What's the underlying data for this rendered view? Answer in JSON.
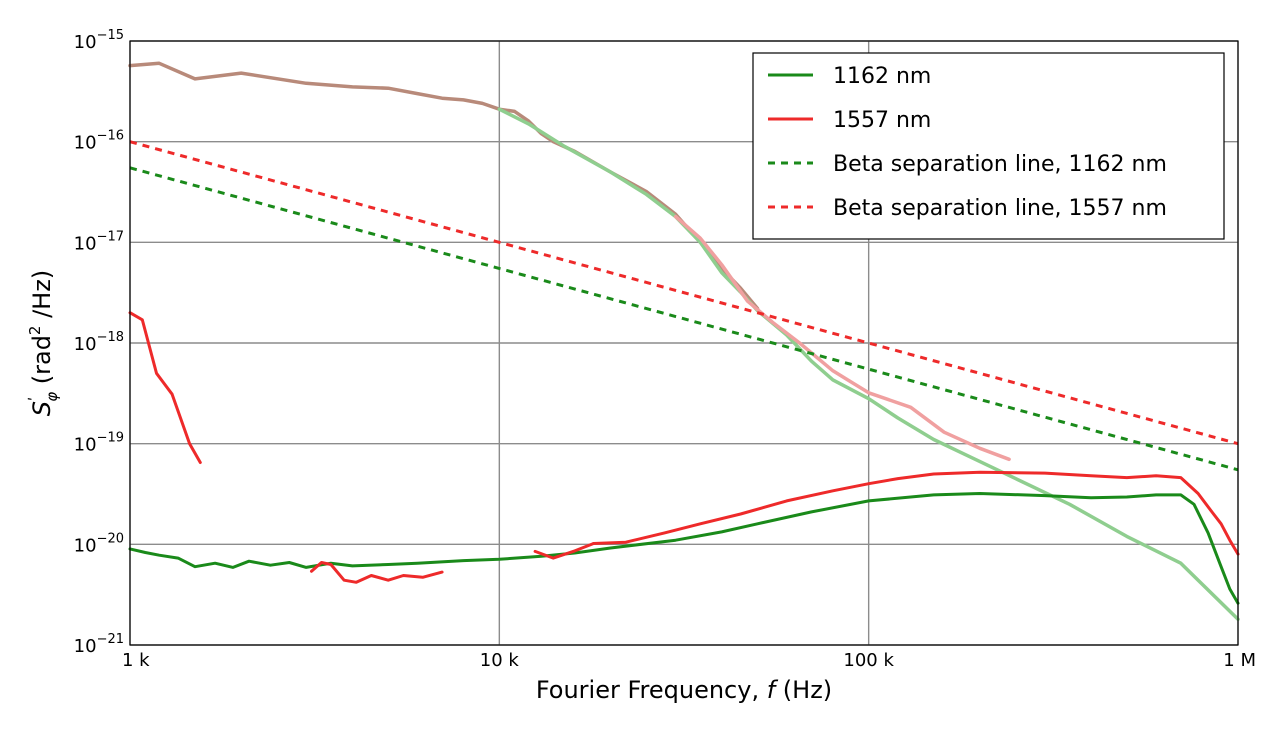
{
  "chart_data": {
    "type": "line",
    "xscale": "log",
    "yscale": "log",
    "xlim": [
      1000,
      1000000
    ],
    "ylim": [
      1e-21,
      1e-15
    ],
    "grid": true,
    "legend_position": "top-right",
    "xlabel": "Fourier Frequency, f (Hz)",
    "xlabel_parts": {
      "before": "Fourier Frequency, ",
      "var": "f",
      "after": " (Hz)"
    },
    "ylabel": "S'φ (rad² /Hz)",
    "ylabel_parts": {
      "symbol": "S",
      "sup": "ʹ",
      "sub": "φ",
      "unit_before": " (rad",
      "unit_sup": "2",
      "unit_after": " /Hz)"
    },
    "x_ticks": [
      {
        "value": 1000,
        "label": "1 k"
      },
      {
        "value": 10000,
        "label": "10 k"
      },
      {
        "value": 100000,
        "label": "100 k"
      },
      {
        "value": 1000000,
        "label": "1 M"
      }
    ],
    "y_ticks": [
      {
        "value": 1e-15,
        "exp": -15
      },
      {
        "value": 1e-16,
        "exp": -16
      },
      {
        "value": 1e-17,
        "exp": -17
      },
      {
        "value": 1e-18,
        "exp": -18
      },
      {
        "value": 1e-19,
        "exp": -19
      },
      {
        "value": 1e-20,
        "exp": -20
      },
      {
        "value": 1e-21,
        "exp": -21
      }
    ],
    "y_tick_base": "10",
    "y_tick_minus": "−",
    "series": [
      {
        "name": "1162 nm",
        "color": "#1a8a1a",
        "dash": false,
        "in_legend": true,
        "segments": [
          [
            [
              1000,
              9e-21
            ],
            [
              1100,
              8.3e-21
            ],
            [
              1200,
              7.8e-21
            ],
            [
              1350,
              7.3e-21
            ],
            [
              1500,
              6e-21
            ],
            [
              1700,
              6.5e-21
            ],
            [
              1900,
              5.9e-21
            ],
            [
              2100,
              6.8e-21
            ],
            [
              2400,
              6.2e-21
            ],
            [
              2700,
              6.6e-21
            ],
            [
              3000,
              5.9e-21
            ],
            [
              3500,
              6.5e-21
            ],
            [
              4000,
              6.1e-21
            ],
            [
              5000,
              6.3e-21
            ],
            [
              6000,
              6.5e-21
            ],
            [
              8000,
              6.9e-21
            ],
            [
              10000,
              7.1e-21
            ],
            [
              13000,
              7.6e-21
            ],
            [
              16000,
              8.2e-21
            ],
            [
              20000,
              9.2e-21
            ],
            [
              30000,
              1.1e-20
            ],
            [
              40000,
              1.33e-20
            ],
            [
              50000,
              1.6e-20
            ],
            [
              70000,
              2.1e-20
            ],
            [
              100000,
              2.7e-20
            ],
            [
              150000,
              3.1e-20
            ],
            [
              200000,
              3.2e-20
            ],
            [
              300000,
              3.05e-20
            ],
            [
              400000,
              2.9e-20
            ],
            [
              500000,
              2.95e-20
            ],
            [
              600000,
              3.1e-20
            ],
            [
              700000,
              3.1e-20
            ],
            [
              760000,
              2.5e-20
            ],
            [
              830000,
              1.3e-20
            ],
            [
              900000,
              6e-21
            ],
            [
              950000,
              3.6e-21
            ],
            [
              1000000,
              2.6e-21
            ]
          ]
        ]
      },
      {
        "name": "1557 nm",
        "color": "#ee2a2a",
        "dash": false,
        "in_legend": true,
        "segments": [
          [
            [
              1000,
              2e-18
            ],
            [
              1080,
              1.7e-18
            ],
            [
              1180,
              5e-19
            ],
            [
              1300,
              3.1e-19
            ],
            [
              1450,
              1e-19
            ],
            [
              1550,
              6.5e-20
            ]
          ],
          [
            [
              3100,
              5.4e-21
            ],
            [
              3300,
              6.6e-21
            ],
            [
              3500,
              6.3e-21
            ],
            [
              3800,
              4.4e-21
            ],
            [
              4100,
              4.2e-21
            ],
            [
              4500,
              4.9e-21
            ],
            [
              5000,
              4.4e-21
            ],
            [
              5500,
              4.9e-21
            ],
            [
              6200,
              4.7e-21
            ],
            [
              7000,
              5.3e-21
            ]
          ],
          [
            [
              12500,
              8.5e-21
            ],
            [
              14000,
              7.3e-21
            ],
            [
              16000,
              8.6e-21
            ],
            [
              18000,
              1.02e-20
            ]
          ],
          [
            [
              18000,
              1.02e-20
            ],
            [
              22000,
              1.05e-20
            ],
            [
              28000,
              1.3e-20
            ],
            [
              35000,
              1.6e-20
            ],
            [
              45000,
              2e-20
            ],
            [
              60000,
              2.7e-20
            ],
            [
              80000,
              3.4e-20
            ],
            [
              100000,
              4e-20
            ],
            [
              120000,
              4.5e-20
            ],
            [
              150000,
              5e-20
            ],
            [
              200000,
              5.2e-20
            ],
            [
              300000,
              5.1e-20
            ],
            [
              400000,
              4.8e-20
            ],
            [
              500000,
              4.6e-20
            ],
            [
              600000,
              4.8e-20
            ],
            [
              700000,
              4.6e-20
            ],
            [
              780000,
              3.2e-20
            ],
            [
              850000,
              2.1e-20
            ],
            [
              900000,
              1.6e-20
            ],
            [
              950000,
              1.1e-20
            ],
            [
              1000000,
              8e-21
            ]
          ]
        ]
      },
      {
        "name": "Beta separation line, 1162 nm",
        "color": "#1a8a1a",
        "dash": true,
        "in_legend": true,
        "segments": [
          [
            [
              1000,
              5.5e-17
            ],
            [
              1000000,
              5.5e-20
            ]
          ]
        ]
      },
      {
        "name": "Beta separation line, 1557 nm",
        "color": "#ee2a2a",
        "dash": true,
        "in_legend": true,
        "segments": [
          [
            [
              1000,
              1e-16
            ],
            [
              1000000,
              1e-19
            ]
          ]
        ]
      },
      {
        "name": "",
        "color": "#b88a7a",
        "dash": false,
        "in_legend": false,
        "segments": [
          [
            [
              1000,
              5.7e-16
            ],
            [
              1200,
              6e-16
            ],
            [
              1500,
              4.2e-16
            ],
            [
              2000,
              4.8e-16
            ],
            [
              3000,
              3.8e-16
            ],
            [
              4000,
              3.5e-16
            ],
            [
              5000,
              3.4e-16
            ],
            [
              6000,
              3e-16
            ],
            [
              7000,
              2.7e-16
            ],
            [
              8000,
              2.6e-16
            ],
            [
              9000,
              2.4e-16
            ],
            [
              10000,
              2.1e-16
            ],
            [
              11000,
              2e-16
            ],
            [
              12000,
              1.6e-16
            ],
            [
              13000,
              1.2e-16
            ],
            [
              14000,
              1e-16
            ],
            [
              16000,
              8e-17
            ],
            [
              20000,
              5e-17
            ],
            [
              25000,
              3.2e-17
            ],
            [
              30000,
              1.9e-17
            ],
            [
              35000,
              1e-17
            ],
            [
              40000,
              5.5e-18
            ],
            [
              45000,
              3.5e-18
            ],
            [
              50000,
              2.2e-18
            ]
          ]
        ]
      },
      {
        "name": "",
        "color": "#8fce8f",
        "dash": false,
        "in_legend": false,
        "segments": [
          [
            [
              10000,
              2.1e-16
            ],
            [
              12000,
              1.5e-16
            ],
            [
              15000,
              9e-17
            ],
            [
              20000,
              5e-17
            ],
            [
              25000,
              3e-17
            ],
            [
              30000,
              1.8e-17
            ],
            [
              35000,
              1e-17
            ],
            [
              40000,
              5e-18
            ],
            [
              45000,
              3.2e-18
            ],
            [
              50000,
              2.1e-18
            ],
            [
              60000,
              1.2e-18
            ],
            [
              70000,
              6.6e-19
            ],
            [
              80000,
              4.3e-19
            ],
            [
              100000,
              2.8e-19
            ],
            [
              120000,
              1.8e-19
            ],
            [
              150000,
              1.1e-19
            ],
            [
              180000,
              8e-20
            ],
            [
              250000,
              4.5e-20
            ],
            [
              350000,
              2.5e-20
            ],
            [
              500000,
              1.2e-20
            ],
            [
              700000,
              6.5e-21
            ],
            [
              1000000,
              1.8e-21
            ]
          ]
        ]
      },
      {
        "name": "",
        "color": "#f0a0a0",
        "dash": false,
        "in_legend": false,
        "segments": [
          [
            [
              30000,
              1.8e-17
            ],
            [
              35000,
              1.1e-17
            ],
            [
              40000,
              6e-18
            ],
            [
              47000,
              2.6e-18
            ],
            [
              55000,
              1.6e-18
            ],
            [
              65000,
              1e-18
            ],
            [
              80000,
              5.3e-19
            ],
            [
              100000,
              3.2e-19
            ],
            [
              130000,
              2.3e-19
            ],
            [
              160000,
              1.3e-19
            ],
            [
              200000,
              9e-20
            ],
            [
              240000,
              7e-20
            ]
          ]
        ]
      }
    ]
  }
}
